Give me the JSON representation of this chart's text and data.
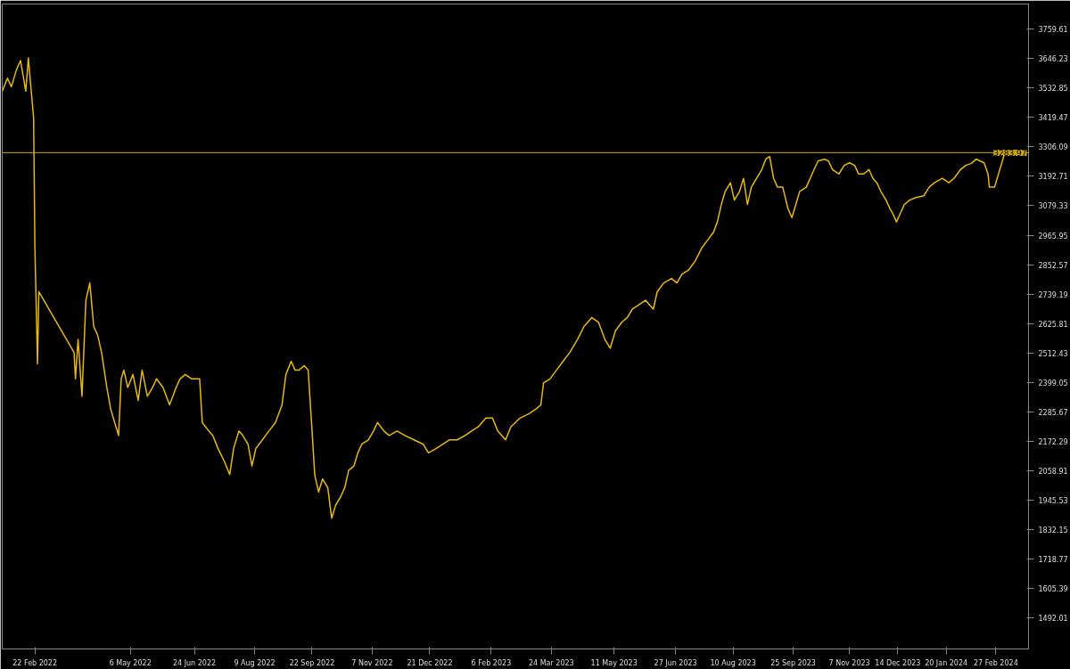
{
  "chart_data": {
    "type": "line",
    "x": [
      "2022-01-28",
      "2022-02-01",
      "2022-02-04",
      "2022-02-08",
      "2022-02-11",
      "2022-02-15",
      "2022-02-17",
      "2022-02-18",
      "2022-02-21",
      "2022-02-22",
      "2022-02-24",
      "2022-02-25",
      "2022-03-24",
      "2022-03-25",
      "2022-03-27",
      "2022-03-30",
      "2022-04-02",
      "2022-04-05",
      "2022-04-08",
      "2022-04-11",
      "2022-04-14",
      "2022-04-18",
      "2022-04-21",
      "2022-04-24",
      "2022-04-27",
      "2022-04-29",
      "2022-05-01",
      "2022-05-04",
      "2022-05-08",
      "2022-05-12",
      "2022-05-15",
      "2022-05-19",
      "2022-05-23",
      "2022-05-26",
      "2022-05-31",
      "2022-06-05",
      "2022-06-10",
      "2022-06-13",
      "2022-06-17",
      "2022-06-22",
      "2022-06-28",
      "2022-06-30",
      "2022-07-05",
      "2022-07-08",
      "2022-07-12",
      "2022-07-17",
      "2022-07-21",
      "2022-07-24",
      "2022-07-28",
      "2022-07-31",
      "2022-08-04",
      "2022-08-07",
      "2022-08-10",
      "2022-08-15",
      "2022-08-20",
      "2022-08-25",
      "2022-08-30",
      "2022-09-02",
      "2022-09-06",
      "2022-09-09",
      "2022-09-12",
      "2022-09-16",
      "2022-09-19",
      "2022-09-22",
      "2022-09-24",
      "2022-09-27",
      "2022-09-30",
      "2022-10-04",
      "2022-10-07",
      "2022-10-10",
      "2022-10-14",
      "2022-10-17",
      "2022-10-20",
      "2022-10-24",
      "2022-10-27",
      "2022-10-30",
      "2022-11-04",
      "2022-11-08",
      "2022-11-11",
      "2022-11-16",
      "2022-11-20",
      "2022-11-26",
      "2022-12-02",
      "2022-12-09",
      "2022-12-16",
      "2022-12-20",
      "2022-12-26",
      "2022-12-31",
      "2023-01-05",
      "2023-01-11",
      "2023-01-17",
      "2023-01-22",
      "2023-01-27",
      "2023-02-02",
      "2023-02-07",
      "2023-02-11",
      "2023-02-17",
      "2023-02-21",
      "2023-02-28",
      "2023-03-07",
      "2023-03-12",
      "2023-03-16",
      "2023-03-18",
      "2023-03-23",
      "2023-03-28",
      "2023-04-02",
      "2023-04-07",
      "2023-04-13",
      "2023-04-18",
      "2023-04-24",
      "2023-04-29",
      "2023-05-04",
      "2023-05-08",
      "2023-05-12",
      "2023-05-17",
      "2023-05-21",
      "2023-05-25",
      "2023-05-30",
      "2023-06-04",
      "2023-06-10",
      "2023-06-13",
      "2023-06-18",
      "2023-06-24",
      "2023-06-28",
      "2023-07-02",
      "2023-07-07",
      "2023-07-12",
      "2023-07-17",
      "2023-07-22",
      "2023-07-26",
      "2023-07-29",
      "2023-08-01",
      "2023-08-04",
      "2023-08-08",
      "2023-08-11",
      "2023-08-15",
      "2023-08-18",
      "2023-08-21",
      "2023-08-24",
      "2023-08-28",
      "2023-09-01",
      "2023-09-04",
      "2023-09-07",
      "2023-09-10",
      "2023-09-13",
      "2023-09-17",
      "2023-09-21",
      "2023-09-24",
      "2023-09-27",
      "2023-09-30",
      "2023-10-05",
      "2023-10-08",
      "2023-10-11",
      "2023-10-14",
      "2023-10-19",
      "2023-10-22",
      "2023-10-25",
      "2023-10-30",
      "2023-11-03",
      "2023-11-07",
      "2023-11-11",
      "2023-11-14",
      "2023-11-18",
      "2023-11-22",
      "2023-11-25",
      "2023-11-28",
      "2023-12-01",
      "2023-12-05",
      "2023-12-08",
      "2023-12-10",
      "2023-12-13",
      "2023-12-16",
      "2023-12-19",
      "2023-12-23",
      "2023-12-28",
      "2024-01-03",
      "2024-01-07",
      "2024-01-11",
      "2024-01-17",
      "2024-01-22",
      "2024-01-26",
      "2024-01-31",
      "2024-02-04",
      "2024-02-08",
      "2024-02-12",
      "2024-02-15",
      "2024-02-18",
      "2024-02-21",
      "2024-02-22",
      "2024-02-26",
      "2024-02-29",
      "2024-03-02",
      "2024-03-04",
      "2024-03-05"
    ],
    "series": [
      {
        "color": "#e6b90c",
        "values": [
          3521,
          3571,
          3538,
          3605,
          3639,
          3521,
          3649,
          3588,
          3420,
          2916,
          2470,
          2748,
          2513,
          2412,
          2564,
          2345,
          2715,
          2782,
          2614,
          2580,
          2513,
          2379,
          2295,
          2244,
          2194,
          2412,
          2446,
          2379,
          2429,
          2329,
          2446,
          2345,
          2379,
          2412,
          2379,
          2312,
          2379,
          2412,
          2429,
          2412,
          2412,
          2244,
          2211,
          2194,
          2144,
          2093,
          2043,
          2144,
          2211,
          2194,
          2160,
          2076,
          2144,
          2177,
          2211,
          2244,
          2312,
          2429,
          2480,
          2446,
          2446,
          2463,
          2446,
          2211,
          2043,
          1976,
          2026,
          1993,
          1875,
          1925,
          1959,
          1993,
          2060,
          2076,
          2127,
          2160,
          2177,
          2211,
          2244,
          2211,
          2194,
          2211,
          2194,
          2177,
          2160,
          2127,
          2144,
          2160,
          2177,
          2177,
          2194,
          2211,
          2227,
          2261,
          2261,
          2211,
          2177,
          2227,
          2261,
          2278,
          2295,
          2312,
          2396,
          2412,
          2446,
          2480,
          2513,
          2564,
          2614,
          2648,
          2631,
          2564,
          2530,
          2597,
          2631,
          2648,
          2681,
          2698,
          2715,
          2681,
          2748,
          2782,
          2799,
          2782,
          2816,
          2832,
          2866,
          2916,
          2950,
          2977,
          3017,
          3084,
          3135,
          3168,
          3101,
          3135,
          3185,
          3084,
          3151,
          3185,
          3219,
          3259,
          3269,
          3185,
          3151,
          3151,
          3068,
          3034,
          3084,
          3135,
          3151,
          3185,
          3219,
          3252,
          3259,
          3252,
          3219,
          3202,
          3235,
          3245,
          3235,
          3202,
          3202,
          3219,
          3185,
          3168,
          3135,
          3101,
          3068,
          3051,
          3017,
          3051,
          3084,
          3101,
          3111,
          3118,
          3151,
          3168,
          3185,
          3168,
          3185,
          3219,
          3235,
          3242,
          3259,
          3252,
          3245,
          3202,
          3151,
          3151,
          3202,
          3235,
          3269,
          3284
        ]
      }
    ],
    "xlim": [
      "2022-01-28",
      "2024-03-23"
    ],
    "xticks": [
      {
        "value": "2022-02-22",
        "label": "22 Feb 2022"
      },
      {
        "value": "2022-05-06",
        "label": "6 May 2022"
      },
      {
        "value": "2022-06-24",
        "label": "24 Jun 2022"
      },
      {
        "value": "2022-08-09",
        "label": "9 Aug 2022"
      },
      {
        "value": "2022-09-22",
        "label": "22 Sep 2022"
      },
      {
        "value": "2022-11-07",
        "label": "7 Nov 2022"
      },
      {
        "value": "2022-12-21",
        "label": "21 Dec 2022"
      },
      {
        "value": "2023-02-06",
        "label": "6 Feb 2023"
      },
      {
        "value": "2023-03-24",
        "label": "24 Mar 2023"
      },
      {
        "value": "2023-05-11",
        "label": "11 May 2023"
      },
      {
        "value": "2023-06-27",
        "label": "27 Jun 2023"
      },
      {
        "value": "2023-08-10",
        "label": "10 Aug 2023"
      },
      {
        "value": "2023-09-25",
        "label": "25 Sep 2023"
      },
      {
        "value": "2023-11-07",
        "label": "7 Nov 2023"
      },
      {
        "value": "2023-12-14",
        "label": "14 Dec 2023"
      },
      {
        "value": "2024-01-20",
        "label": "20 Jan 2024"
      },
      {
        "value": "2024-02-27",
        "label": "27 Feb 2024"
      }
    ],
    "ylim": [
      1371,
      3857
    ],
    "yticks": [
      1492.01,
      1605.39,
      1718.77,
      1832.15,
      1945.53,
      2058.91,
      2172.29,
      2285.67,
      2399.05,
      2512.43,
      2625.81,
      2739.19,
      2852.57,
      2965.95,
      3079.33,
      3192.71,
      3306.09,
      3419.47,
      3532.85,
      3646.23,
      3759.61
    ],
    "ref_lines": [
      {
        "axis": "y",
        "value": 3283.97,
        "label": "3283.97",
        "color": "#c9a400",
        "line_style": "solid"
      }
    ],
    "grid": false,
    "line_style": "solid"
  }
}
